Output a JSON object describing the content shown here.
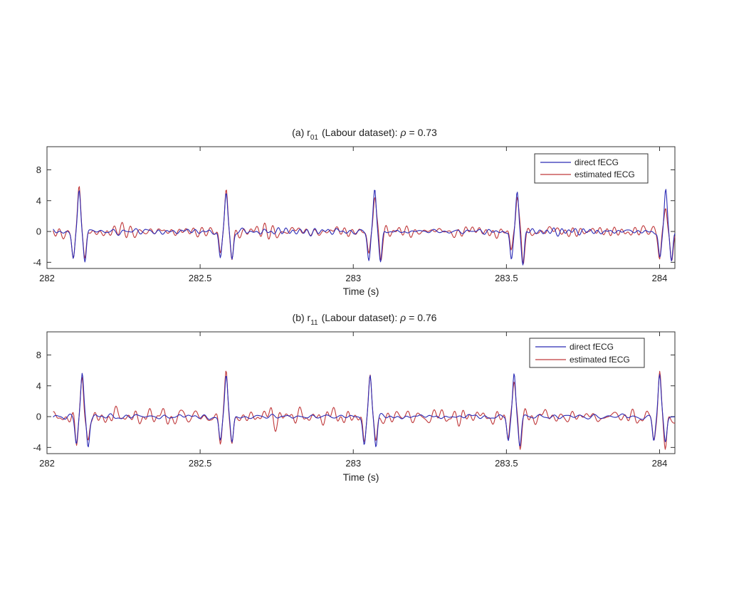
{
  "colors": {
    "direct": "#2b2bb5",
    "estimated": "#c0393b",
    "axis": "#333333"
  },
  "chart_data": [
    {
      "type": "line",
      "title_prefix": "(a) r",
      "title_sub": "01",
      "title_suffix": "(Labour dataset): ",
      "title_rho": "ρ",
      "title_value": "= 0.73",
      "xlabel": "Time (s)",
      "ylabel": "",
      "xlim": [
        282,
        284.05
      ],
      "ylim": [
        -4.8,
        11
      ],
      "xticks": [
        "282",
        "282.5",
        "283",
        "283.5",
        "284"
      ],
      "xtick_values": [
        282,
        282.5,
        283,
        283.5,
        284
      ],
      "yticks": [
        "-4",
        "0",
        "4",
        "8"
      ],
      "ytick_values": [
        -4,
        0,
        4,
        8
      ],
      "legend": [
        "direct fECG",
        "estimated fECG"
      ],
      "legend_position": "top-right",
      "grid": false,
      "beats": [
        {
          "t": 282.105,
          "direct_peak": 5.4,
          "direct_trough": -3.9,
          "est_peak": 5.3,
          "est_trough": -3.8
        },
        {
          "t": 282.585,
          "direct_peak": 5.2,
          "direct_trough": -3.9,
          "est_peak": 5.1,
          "est_trough": -3.3
        },
        {
          "t": 283.07,
          "direct_peak": 5.4,
          "direct_trough": -4.1,
          "est_peak": 5.0,
          "est_trough": -3.4
        },
        {
          "t": 283.535,
          "direct_peak": 4.9,
          "direct_trough": -4.2,
          "est_peak": 4.7,
          "est_trough": -3.6
        },
        {
          "t": 284.02,
          "direct_peak": 5.3,
          "direct_trough": -3.9,
          "est_peak": 3.9,
          "est_trough": -3.8
        }
      ],
      "direct_noise": 0.22,
      "estimated_noise": 0.55
    },
    {
      "type": "line",
      "title_prefix": "(b) r",
      "title_sub": "11",
      "title_suffix": "(Labour dataset): ",
      "title_rho": "ρ",
      "title_value": "= 0.76",
      "xlabel": "Time (s)",
      "ylabel": "",
      "xlim": [
        282,
        284.05
      ],
      "ylim": [
        -4.8,
        11
      ],
      "xticks": [
        "282",
        "282.5",
        "283",
        "283.5",
        "284"
      ],
      "xtick_values": [
        282,
        282.5,
        283,
        283.5,
        284
      ],
      "yticks": [
        "-4",
        "0",
        "4",
        "8"
      ],
      "ytick_values": [
        -4,
        0,
        4,
        8
      ],
      "legend": [
        "direct fECG",
        "estimated fECG"
      ],
      "legend_position": "top-right",
      "grid": false,
      "beats": [
        {
          "t": 282.115,
          "direct_peak": 5.7,
          "direct_trough": -3.9,
          "est_peak": 5.0,
          "est_trough": -3.9
        },
        {
          "t": 282.585,
          "direct_peak": 5.4,
          "direct_trough": -3.6,
          "est_peak": 5.3,
          "est_trough": -3.5
        },
        {
          "t": 283.055,
          "direct_peak": 5.5,
          "direct_trough": -4.0,
          "est_peak": 5.1,
          "est_trough": -3.6
        },
        {
          "t": 283.525,
          "direct_peak": 5.5,
          "direct_trough": -3.6,
          "est_peak": 4.9,
          "est_trough": -3.4
        },
        {
          "t": 284.0,
          "direct_peak": 5.4,
          "direct_trough": -3.5,
          "est_peak": 5.2,
          "est_trough": -3.7
        }
      ],
      "direct_noise": 0.2,
      "estimated_noise": 0.55
    }
  ]
}
